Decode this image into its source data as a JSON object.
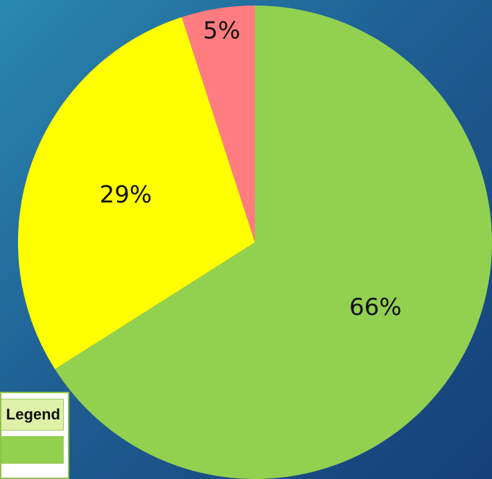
{
  "chart_data": {
    "type": "pie",
    "slices": [
      {
        "label": "66%",
        "value": 66,
        "color": "#92d050"
      },
      {
        "label": "29%",
        "value": 29,
        "color": "#ffff00"
      },
      {
        "label": "5%",
        "value": 5,
        "color": "#ff7c80"
      }
    ],
    "start": "top",
    "direction": "clockwise",
    "legend_placement": "bottom-left"
  },
  "legend": {
    "title": "Legend",
    "swatch_color": "#92d050"
  }
}
